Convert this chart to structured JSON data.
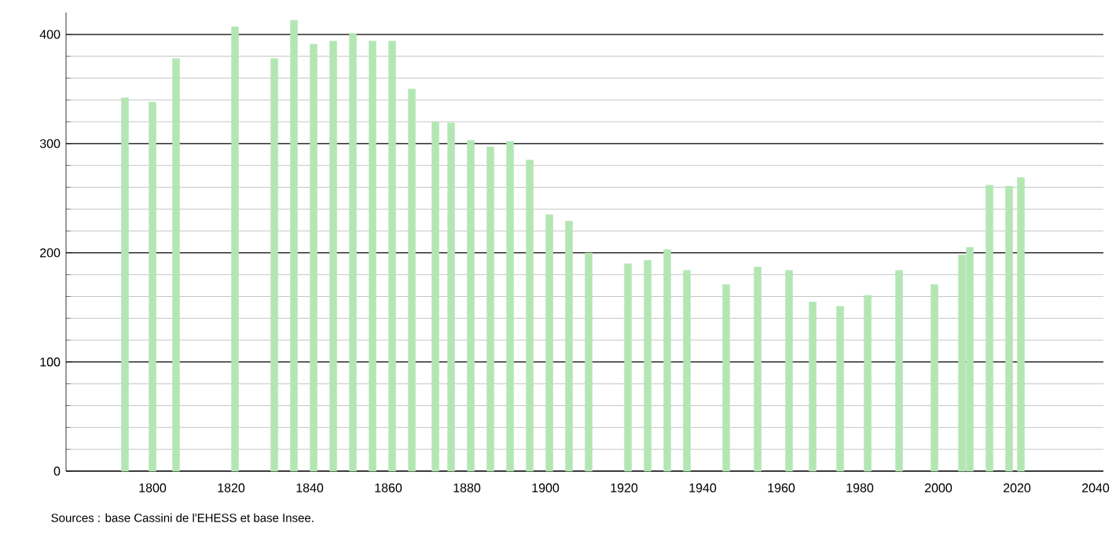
{
  "chart_data": {
    "type": "bar",
    "x": [
      1793,
      1800,
      1806,
      1821,
      1831,
      1836,
      1841,
      1846,
      1851,
      1856,
      1861,
      1866,
      1872,
      1876,
      1881,
      1886,
      1891,
      1896,
      1901,
      1906,
      1911,
      1921,
      1926,
      1931,
      1936,
      1946,
      1954,
      1962,
      1968,
      1975,
      1982,
      1990,
      1999,
      2006,
      2008,
      2013,
      2018,
      2021
    ],
    "values": [
      342,
      338,
      378,
      407,
      378,
      413,
      391,
      394,
      401,
      394,
      394,
      350,
      320,
      319,
      303,
      297,
      302,
      285,
      235,
      229,
      200,
      190,
      193,
      203,
      184,
      171,
      187,
      184,
      155,
      151,
      161,
      184,
      171,
      198,
      205,
      262,
      261,
      269
    ],
    "color": "#b3e6b3",
    "xlim": [
      1778,
      2042
    ],
    "xticks": [
      1800,
      1820,
      1840,
      1860,
      1880,
      1900,
      1920,
      1940,
      1960,
      1980,
      2000,
      2020,
      2040
    ],
    "ylim": [
      0,
      420
    ],
    "yticks": [
      0,
      100,
      200,
      300,
      400
    ],
    "grid": "y",
    "annotations": [
      "Sources : base Cassini de l'EHESS et base Insee."
    ]
  }
}
